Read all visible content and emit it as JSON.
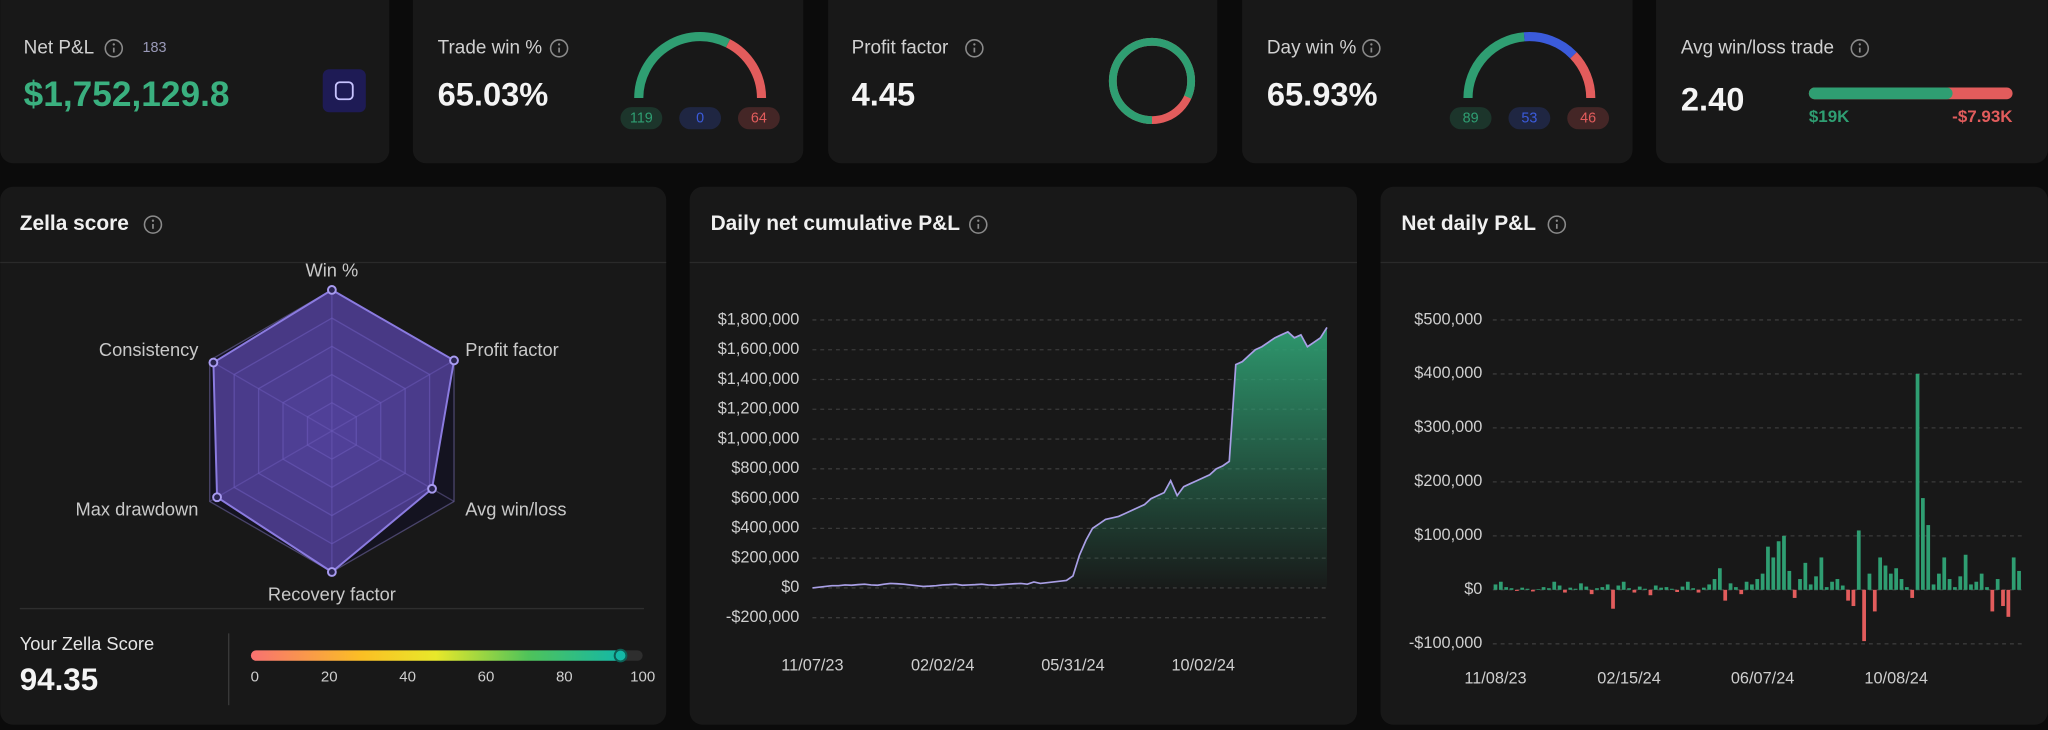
{
  "cards": [
    {
      "title": "Net P&L",
      "badge": 183,
      "value": "$1,752,129.8"
    },
    {
      "title": "Trade win %",
      "value": "65.03%",
      "counts": [
        119,
        0,
        64
      ],
      "colors": [
        "#2f9e72",
        "#3b5bdb",
        "#e25c5c"
      ]
    },
    {
      "title": "Profit factor",
      "value": 4.45,
      "colors": [
        "#2f9e72",
        "#e25c5c"
      ]
    },
    {
      "title": "Day win %",
      "value": "65.93%",
      "counts": [
        89,
        53,
        46
      ],
      "colors": [
        "#2f9e72",
        "#3b5bdb",
        "#e25c5c"
      ]
    },
    {
      "title": "Avg win/loss trade",
      "value": "2.40",
      "avg_win": {
        "value": 19000,
        "label": "$19K"
      },
      "avg_loss": {
        "value": -7930,
        "label": "-$7.93K"
      },
      "colors": [
        "#2f9e72",
        "#e25c5c"
      ]
    }
  ],
  "zella": {
    "score_label": "Your Zella Score",
    "score": 94.35,
    "scale_ticks": [
      0,
      20,
      40,
      60,
      80,
      100
    ]
  },
  "chart_data": [
    {
      "type": "radar",
      "title": "Zella score",
      "categories": [
        "Win %",
        "Profit factor",
        "Avg win/loss",
        "Recovery factor",
        "Max drawdown",
        "Consistency"
      ],
      "values": [
        100,
        100,
        82,
        100,
        94,
        97
      ],
      "rlim": [
        0,
        100
      ],
      "rticks": [
        20,
        40,
        60,
        80,
        100
      ],
      "color": "#6a54c9"
    },
    {
      "type": "area",
      "title": "Daily net cumulative P&L",
      "categories": [
        "11/07/23",
        null,
        null,
        null,
        null,
        null,
        null,
        null,
        null,
        null,
        null,
        null,
        null,
        null,
        null,
        null,
        null,
        null,
        null,
        null,
        "02/02/24",
        null,
        null,
        null,
        null,
        null,
        null,
        null,
        null,
        null,
        null,
        null,
        null,
        null,
        null,
        null,
        null,
        null,
        null,
        null,
        "05/31/24",
        null,
        null,
        null,
        null,
        null,
        null,
        null,
        null,
        null,
        null,
        null,
        null,
        null,
        null,
        null,
        null,
        null,
        null,
        null,
        "10/02/24",
        null,
        null,
        null,
        null,
        null,
        null,
        null,
        null,
        null,
        null,
        null,
        null,
        null,
        null,
        null,
        null,
        null,
        null,
        null
      ],
      "values": [
        0,
        5000,
        10000,
        15000,
        15000,
        20000,
        18000,
        22000,
        25000,
        20000,
        18000,
        25000,
        30000,
        28000,
        25000,
        20000,
        15000,
        10000,
        12000,
        15000,
        20000,
        22000,
        25000,
        18000,
        20000,
        22000,
        25000,
        20000,
        18000,
        22000,
        25000,
        28000,
        30000,
        25000,
        40000,
        30000,
        35000,
        40000,
        45000,
        50000,
        80000,
        220000,
        320000,
        400000,
        430000,
        460000,
        470000,
        480000,
        500000,
        520000,
        540000,
        560000,
        600000,
        620000,
        640000,
        720000,
        620000,
        680000,
        700000,
        720000,
        740000,
        760000,
        800000,
        820000,
        850000,
        1500000,
        1520000,
        1560000,
        1600000,
        1620000,
        1650000,
        1680000,
        1700000,
        1720000,
        1680000,
        1700000,
        1620000,
        1650000,
        1680000,
        1750000
      ],
      "color": "#a99fe6",
      "fill_color": "#2f9e72",
      "ylim": [
        -200000,
        1800000
      ],
      "yticks": [
        {
          "value": -200000,
          "label": "-$200,000"
        },
        {
          "value": 0,
          "label": "$0"
        },
        {
          "value": 200000,
          "label": "$200,000"
        },
        {
          "value": 400000,
          "label": "$400,000"
        },
        {
          "value": 600000,
          "label": "$600,000"
        },
        {
          "value": 800000,
          "label": "$800,000"
        },
        {
          "value": 1000000,
          "label": "$1,000,000"
        },
        {
          "value": 1200000,
          "label": "$1,200,000"
        },
        {
          "value": 1400000,
          "label": "$1,400,000"
        },
        {
          "value": 1600000,
          "label": "$1,600,000"
        },
        {
          "value": 1800000,
          "label": "$1,800,000"
        }
      ],
      "grid": true
    },
    {
      "type": "bar",
      "title": "Net daily P&L",
      "categories": [
        "11/08/23",
        null,
        null,
        null,
        null,
        null,
        null,
        null,
        null,
        null,
        null,
        null,
        null,
        null,
        null,
        null,
        null,
        null,
        null,
        null,
        null,
        null,
        null,
        null,
        null,
        "02/15/24",
        null,
        null,
        null,
        null,
        null,
        null,
        null,
        null,
        null,
        null,
        null,
        null,
        null,
        null,
        null,
        null,
        null,
        null,
        null,
        null,
        null,
        null,
        null,
        null,
        "06/07/24",
        null,
        null,
        null,
        null,
        null,
        null,
        null,
        null,
        null,
        null,
        null,
        null,
        null,
        null,
        null,
        null,
        null,
        null,
        null,
        null,
        null,
        null,
        null,
        null,
        "10/08/24",
        null,
        null,
        null,
        null,
        null,
        null,
        null,
        null,
        null,
        null,
        null,
        null,
        null,
        null,
        null,
        null,
        null,
        null,
        null,
        null,
        null,
        null,
        null
      ],
      "values": [
        10000,
        15000,
        5000,
        3000,
        -2000,
        4000,
        2000,
        -3000,
        1000,
        5000,
        3000,
        15000,
        8000,
        -5000,
        4000,
        2000,
        12000,
        6000,
        -8000,
        3000,
        5000,
        10000,
        -35000,
        8000,
        15000,
        3000,
        -5000,
        6000,
        2000,
        -10000,
        8000,
        4000,
        5000,
        2000,
        -4000,
        6000,
        15000,
        3000,
        -5000,
        4000,
        10000,
        20000,
        40000,
        -20000,
        12000,
        5000,
        -8000,
        15000,
        10000,
        20000,
        30000,
        80000,
        60000,
        90000,
        100000,
        35000,
        -15000,
        20000,
        50000,
        10000,
        25000,
        60000,
        5000,
        15000,
        20000,
        8000,
        -20000,
        -30000,
        110000,
        -95000,
        30000,
        -40000,
        60000,
        45000,
        30000,
        40000,
        20000,
        5000,
        -15000,
        400000,
        170000,
        120000,
        10000,
        30000,
        60000,
        20000,
        5000,
        25000,
        65000,
        10000,
        15000,
        30000,
        5000,
        -40000,
        20000,
        -30000,
        -50000,
        60000,
        35000
      ],
      "colors": {
        "positive": "#2f9e72",
        "negative": "#e25c5c"
      },
      "ylim": [
        -100000,
        500000
      ],
      "yticks": [
        {
          "value": -100000,
          "label": "-$100,000"
        },
        {
          "value": 0,
          "label": "$0"
        },
        {
          "value": 100000,
          "label": "$100,000"
        },
        {
          "value": 200000,
          "label": "$200,000"
        },
        {
          "value": 300000,
          "label": "$300,000"
        },
        {
          "value": 400000,
          "label": "$400,000"
        },
        {
          "value": 500000,
          "label": "$500,000"
        }
      ],
      "grid": true
    }
  ]
}
